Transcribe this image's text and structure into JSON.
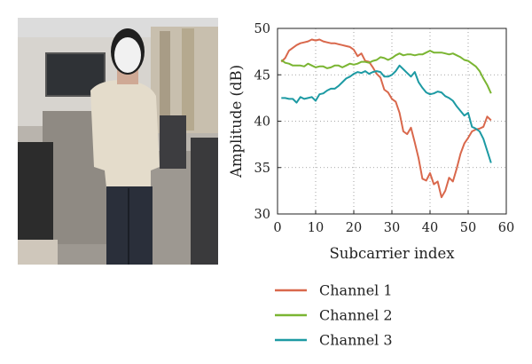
{
  "chart_data": {
    "type": "line",
    "xlabel": "Subcarrier index",
    "ylabel": "Amplitude (dB)",
    "xlim": [
      0,
      60
    ],
    "ylim": [
      30,
      50
    ],
    "xticks": [
      0,
      10,
      20,
      30,
      40,
      50,
      60
    ],
    "yticks": [
      30,
      35,
      40,
      45,
      50
    ],
    "grid": "dotted",
    "legend_position": "below",
    "series": [
      {
        "name": "Channel 1",
        "color": "#d9684c",
        "x": [
          1,
          2,
          3,
          4,
          5,
          6,
          7,
          8,
          9,
          10,
          11,
          12,
          13,
          14,
          15,
          16,
          17,
          18,
          19,
          20,
          21,
          22,
          23,
          24,
          25,
          26,
          27,
          28,
          29,
          30,
          31,
          32,
          33,
          34,
          35,
          36,
          37,
          38,
          39,
          40,
          41,
          42,
          43,
          44,
          45,
          46,
          47,
          48,
          49,
          50,
          51,
          52,
          53,
          54,
          55,
          56
        ],
        "values": [
          46.4,
          46.8,
          47.6,
          47.9,
          48.2,
          48.4,
          48.5,
          48.6,
          48.8,
          48.7,
          48.8,
          48.6,
          48.5,
          48.4,
          48.4,
          48.3,
          48.2,
          48.1,
          48.0,
          47.7,
          47.0,
          47.3,
          46.5,
          46.4,
          45.8,
          45.1,
          44.7,
          43.4,
          43.1,
          42.4,
          42.1,
          40.9,
          38.9,
          38.6,
          39.3,
          37.7,
          36.0,
          33.8,
          33.6,
          34.4,
          33.2,
          33.5,
          31.8,
          32.5,
          33.9,
          33.5,
          34.9,
          36.5,
          37.6,
          38.2,
          38.9,
          39.1,
          39.2,
          39.4,
          40.5,
          40.1
        ]
      },
      {
        "name": "Channel 2",
        "color": "#7ab532",
        "x": [
          1,
          2,
          3,
          4,
          5,
          6,
          7,
          8,
          9,
          10,
          11,
          12,
          13,
          14,
          15,
          16,
          17,
          18,
          19,
          20,
          21,
          22,
          23,
          24,
          25,
          26,
          27,
          28,
          29,
          30,
          31,
          32,
          33,
          34,
          35,
          36,
          37,
          38,
          39,
          40,
          41,
          42,
          43,
          44,
          45,
          46,
          47,
          48,
          49,
          50,
          51,
          52,
          53,
          54,
          55,
          56
        ],
        "values": [
          46.6,
          46.3,
          46.2,
          46.0,
          46.0,
          46.0,
          45.9,
          46.2,
          46.0,
          45.8,
          45.9,
          45.9,
          45.7,
          45.8,
          46.0,
          46.0,
          45.8,
          46.0,
          46.2,
          46.1,
          46.2,
          46.4,
          46.4,
          46.3,
          46.5,
          46.6,
          46.9,
          46.8,
          46.6,
          46.8,
          47.1,
          47.3,
          47.1,
          47.2,
          47.2,
          47.1,
          47.2,
          47.2,
          47.4,
          47.6,
          47.4,
          47.4,
          47.4,
          47.3,
          47.2,
          47.3,
          47.1,
          46.9,
          46.6,
          46.5,
          46.2,
          45.9,
          45.4,
          44.6,
          43.9,
          43.0
        ]
      },
      {
        "name": "Channel 3",
        "color": "#1d9aa3",
        "x": [
          1,
          2,
          3,
          4,
          5,
          6,
          7,
          8,
          9,
          10,
          11,
          12,
          13,
          14,
          15,
          16,
          17,
          18,
          19,
          20,
          21,
          22,
          23,
          24,
          25,
          26,
          27,
          28,
          29,
          30,
          31,
          32,
          33,
          34,
          35,
          36,
          37,
          38,
          39,
          40,
          41,
          42,
          43,
          44,
          45,
          46,
          47,
          48,
          49,
          50,
          51,
          52,
          53,
          54,
          55,
          56
        ],
        "values": [
          42.5,
          42.5,
          42.4,
          42.4,
          42.0,
          42.6,
          42.4,
          42.5,
          42.6,
          42.2,
          42.9,
          43.0,
          43.3,
          43.5,
          43.5,
          43.8,
          44.2,
          44.6,
          44.8,
          45.1,
          45.3,
          45.2,
          45.4,
          45.1,
          45.3,
          45.4,
          45.3,
          44.8,
          44.8,
          45.0,
          45.4,
          46.0,
          45.6,
          45.2,
          44.8,
          45.3,
          44.2,
          43.6,
          43.1,
          42.9,
          43.0,
          43.2,
          43.1,
          42.7,
          42.5,
          42.2,
          41.6,
          41.1,
          40.6,
          40.9,
          39.4,
          39.2,
          38.9,
          38.1,
          36.8,
          35.5
        ]
      }
    ]
  }
}
